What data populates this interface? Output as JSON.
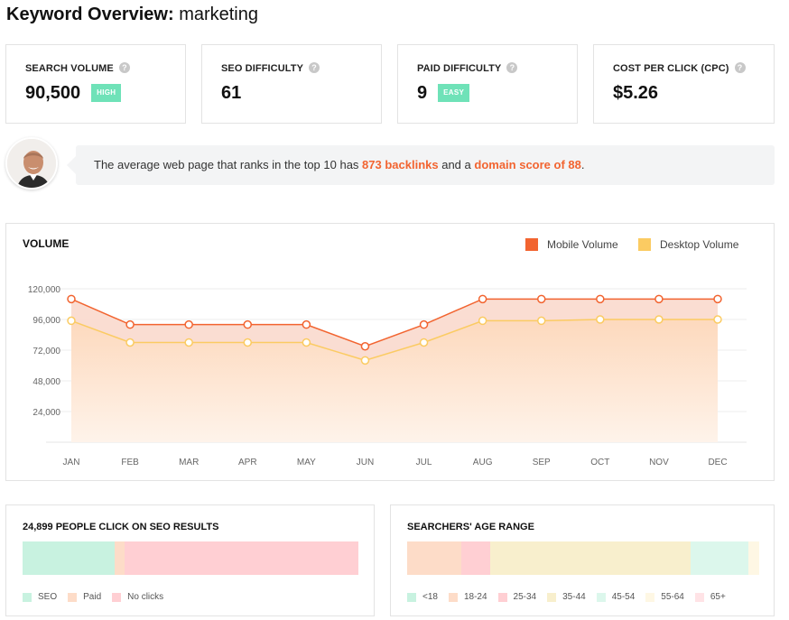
{
  "header": {
    "title_prefix": "Keyword Overview:",
    "keyword": "marketing"
  },
  "metrics": [
    {
      "label": "SEARCH VOLUME",
      "value": "90,500",
      "badge": "HIGH",
      "badge_color": "#6fe2b8"
    },
    {
      "label": "SEO DIFFICULTY",
      "value": "61",
      "badge": "",
      "badge_color": ""
    },
    {
      "label": "PAID DIFFICULTY",
      "value": "9",
      "badge": "EASY",
      "badge_color": "#6fe2b8"
    },
    {
      "label": "COST PER CLICK (CPC)",
      "value": "$5.26",
      "badge": "",
      "badge_color": ""
    }
  ],
  "help_glyph": "?",
  "tip": {
    "text_before": "The average web page that ranks in the top 10 has ",
    "backlinks": "873 backlinks",
    "text_middle": " and a ",
    "domain_score": "domain score of 88",
    "text_after": ".",
    "highlight_color": "#f26430"
  },
  "volume": {
    "title": "VOLUME",
    "legend_mobile": "Mobile Volume",
    "legend_desktop": "Desktop Volume"
  },
  "chart_data": {
    "type": "area",
    "title": "VOLUME",
    "x": [
      "JAN",
      "FEB",
      "MAR",
      "APR",
      "MAY",
      "JUN",
      "JUL",
      "AUG",
      "SEP",
      "OCT",
      "NOV",
      "DEC"
    ],
    "yticks": [
      "120,000",
      "96,000",
      "72,000",
      "48,000",
      "24,000"
    ],
    "ylim": [
      0,
      120000
    ],
    "series": [
      {
        "name": "Mobile Volume",
        "color": "#f26430",
        "fill": "#fadbd0",
        "values": [
          112000,
          92000,
          92000,
          92000,
          92000,
          75000,
          92000,
          112000,
          112000,
          112000,
          112000,
          112000
        ]
      },
      {
        "name": "Desktop Volume",
        "color": "#fbcb62",
        "fill": "#fde0c8",
        "values": [
          95000,
          78000,
          78000,
          78000,
          78000,
          64000,
          78000,
          95000,
          95000,
          96000,
          96000,
          96000
        ]
      }
    ],
    "grid": true,
    "legend": "top-right"
  },
  "clicks": {
    "title": "24,899 PEOPLE CLICK ON SEO RESULTS",
    "segments": [
      {
        "label": "SEO",
        "pct": 27.5,
        "color": "#c8f2e0"
      },
      {
        "label": "Paid",
        "pct": 3,
        "color": "#fddcc8"
      },
      {
        "label": "No clicks",
        "pct": 69.5,
        "color": "#ffcfd3"
      }
    ]
  },
  "age": {
    "title": "SEARCHERS' AGE RANGE",
    "segments": [
      {
        "label": "<18",
        "pct": 0,
        "color": "#c8f2e0"
      },
      {
        "label": "18-24",
        "pct": 15.5,
        "color": "#fddcc8"
      },
      {
        "label": "25-34",
        "pct": 8,
        "color": "#ffcfd3"
      },
      {
        "label": "35-44",
        "pct": 57,
        "color": "#f8efcd"
      },
      {
        "label": "45-54",
        "pct": 16.5,
        "color": "#dcf7ec"
      },
      {
        "label": "55-64",
        "pct": 3,
        "color": "#fef7e4"
      },
      {
        "label": "65+",
        "pct": 0,
        "color": "#ffe3e6"
      }
    ]
  }
}
